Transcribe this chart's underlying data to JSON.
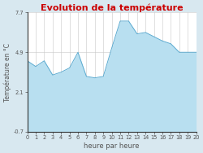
{
  "title": "Evolution de la température",
  "xlabel": "heure par heure",
  "ylabel": "Température en °C",
  "x_ticks": [
    0,
    1,
    2,
    3,
    4,
    5,
    6,
    7,
    8,
    9,
    10,
    11,
    12,
    13,
    14,
    15,
    16,
    17,
    18,
    19,
    20
  ],
  "x_tick_labels": [
    "0",
    "1",
    "2",
    "3",
    "4",
    "5",
    "6",
    "7",
    "8",
    "9",
    "10",
    "11",
    "12",
    "13",
    "14",
    "15",
    "16",
    "17",
    "18",
    "19",
    "20"
  ],
  "y_ticks": [
    -0.7,
    2.1,
    4.9,
    7.7
  ],
  "ylim": [
    -0.7,
    7.7
  ],
  "xlim": [
    0,
    20
  ],
  "hours": [
    0,
    1,
    2,
    3,
    4,
    5,
    6,
    7,
    8,
    9,
    10,
    11,
    12,
    13,
    14,
    15,
    16,
    17,
    18,
    19,
    20
  ],
  "temps": [
    4.3,
    3.9,
    4.3,
    3.3,
    3.5,
    3.8,
    4.9,
    3.2,
    3.1,
    3.2,
    5.2,
    7.1,
    7.1,
    6.2,
    6.3,
    6.0,
    5.7,
    5.5,
    4.9,
    4.9,
    4.9
  ],
  "fill_color": "#b8dff0",
  "line_color": "#5aaad0",
  "title_color": "#cc0000",
  "bg_color": "#d8e8f0",
  "plot_bg_color": "#ffffff",
  "grid_color": "#c8c8c8",
  "tick_color": "#555555",
  "axis_color": "#333333",
  "title_fontsize": 8,
  "label_fontsize": 6,
  "tick_fontsize": 4.8,
  "ylabel_fontsize": 5.5
}
